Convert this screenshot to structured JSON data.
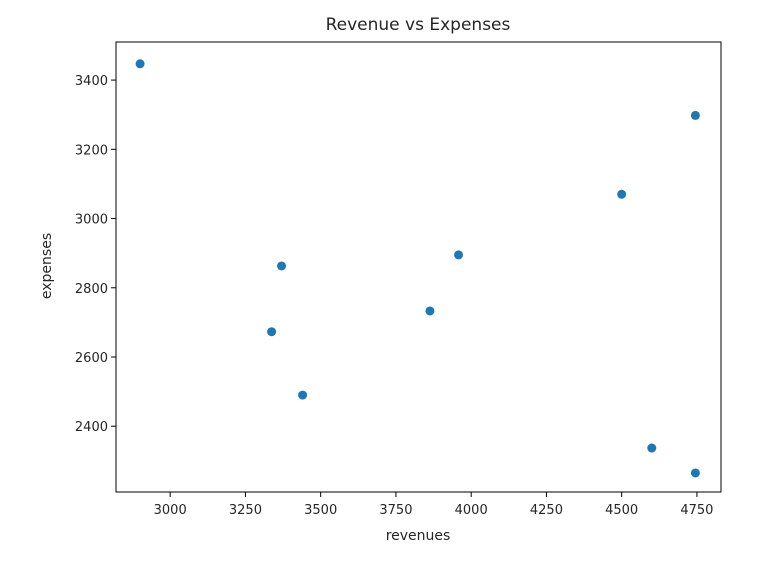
{
  "chart_data": {
    "type": "scatter",
    "title": "Revenue vs Expenses",
    "xlabel": "revenues",
    "ylabel": "expenses",
    "xlim": [
      2820,
      4830
    ],
    "ylim": [
      2210,
      3510
    ],
    "xticks": [
      3000,
      3250,
      3500,
      3750,
      4000,
      4250,
      4500,
      4750
    ],
    "yticks": [
      2400,
      2600,
      2800,
      3000,
      3200,
      3400
    ],
    "grid": false,
    "marker_color": "#1f77b4",
    "points": [
      {
        "x": 2900,
        "y": 3447
      },
      {
        "x": 3337,
        "y": 2673
      },
      {
        "x": 3370,
        "y": 2863
      },
      {
        "x": 3440,
        "y": 2490
      },
      {
        "x": 3863,
        "y": 2733
      },
      {
        "x": 3958,
        "y": 2895
      },
      {
        "x": 4500,
        "y": 3070
      },
      {
        "x": 4600,
        "y": 2337
      },
      {
        "x": 4745,
        "y": 3298
      },
      {
        "x": 4745,
        "y": 2265
      }
    ]
  }
}
